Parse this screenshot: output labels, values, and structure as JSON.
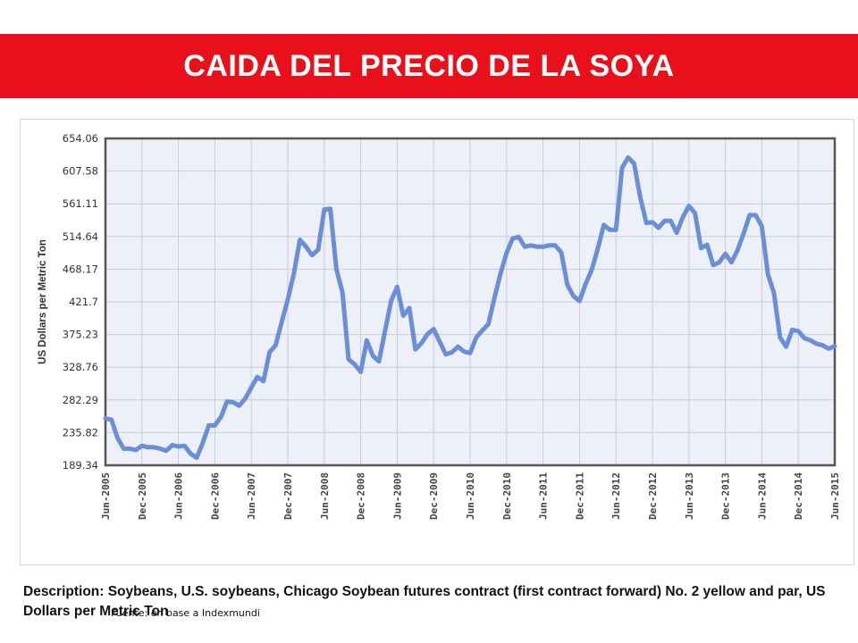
{
  "header": {
    "title": "CAIDA DEL PRECIO DE LA SOYA",
    "background_color": "#e8101a",
    "text_color": "#ffffff"
  },
  "chart_data": {
    "type": "line",
    "title": "",
    "xlabel": "",
    "ylabel": "US Dollars per Metric Ton",
    "ylim": [
      189.34,
      654.06
    ],
    "y_ticks": [
      "654.06",
      "607.58",
      "561.11",
      "514.64",
      "468.17",
      "421.7",
      "375.23",
      "328.76",
      "282.29",
      "235.82",
      "189.34"
    ],
    "x_ticks": [
      "Jun-2005",
      "Dec-2005",
      "Jun-2006",
      "Dec-2006",
      "Jun-2007",
      "Dec-2007",
      "Jun-2008",
      "Dec-2008",
      "Jun-2009",
      "Dec-2009",
      "Jun-2010",
      "Dec-2010",
      "Jun-2011",
      "Dec-2011",
      "Jun-2012",
      "Dec-2012",
      "Jun-2013",
      "Dec-2013",
      "Jun-2014",
      "Dec-2014",
      "Jun-2015"
    ],
    "grid": true,
    "line_color": "#6b8fd6",
    "plot_background": "#eef0f8",
    "series": [
      {
        "values": [
          [
            0,
            256
          ],
          [
            1,
            254
          ],
          [
            2,
            228
          ],
          [
            3,
            213
          ],
          [
            4,
            213
          ],
          [
            5,
            211
          ],
          [
            6,
            217
          ],
          [
            7,
            215
          ],
          [
            8,
            215
          ],
          [
            9,
            213
          ],
          [
            10,
            210
          ],
          [
            11,
            218
          ],
          [
            12,
            216
          ],
          [
            13,
            217
          ],
          [
            14,
            206
          ],
          [
            15,
            200
          ],
          [
            16,
            221
          ],
          [
            17,
            246
          ],
          [
            18,
            246
          ],
          [
            19,
            258
          ],
          [
            20,
            280
          ],
          [
            21,
            279
          ],
          [
            22,
            274
          ],
          [
            23,
            284
          ],
          [
            24,
            300
          ],
          [
            25,
            315
          ],
          [
            26,
            309
          ],
          [
            27,
            350
          ],
          [
            28,
            360
          ],
          [
            29,
            393
          ],
          [
            30,
            425
          ],
          [
            31,
            462
          ],
          [
            32,
            510
          ],
          [
            33,
            500
          ],
          [
            34,
            488
          ],
          [
            35,
            496
          ],
          [
            36,
            553
          ],
          [
            37,
            554
          ],
          [
            38,
            468
          ],
          [
            39,
            435
          ],
          [
            40,
            340
          ],
          [
            41,
            333
          ],
          [
            42,
            322
          ],
          [
            43,
            367
          ],
          [
            44,
            345
          ],
          [
            45,
            337
          ],
          [
            46,
            380
          ],
          [
            47,
            423
          ],
          [
            48,
            443
          ],
          [
            49,
            402
          ],
          [
            50,
            413
          ],
          [
            51,
            354
          ],
          [
            52,
            363
          ],
          [
            53,
            376
          ],
          [
            54,
            383
          ],
          [
            55,
            365
          ],
          [
            56,
            347
          ],
          [
            57,
            350
          ],
          [
            58,
            358
          ],
          [
            59,
            351
          ],
          [
            60,
            349
          ],
          [
            61,
            371
          ],
          [
            62,
            381
          ],
          [
            63,
            390
          ],
          [
            64,
            427
          ],
          [
            65,
            462
          ],
          [
            66,
            491
          ],
          [
            67,
            512
          ],
          [
            68,
            514
          ],
          [
            69,
            500
          ],
          [
            70,
            502
          ],
          [
            71,
            500
          ],
          [
            72,
            500
          ],
          [
            73,
            502
          ],
          [
            74,
            502
          ],
          [
            75,
            492
          ],
          [
            76,
            446
          ],
          [
            77,
            430
          ],
          [
            78,
            423
          ],
          [
            79,
            447
          ],
          [
            80,
            467
          ],
          [
            81,
            497
          ],
          [
            82,
            531
          ],
          [
            83,
            524
          ],
          [
            84,
            524
          ],
          [
            85,
            612
          ],
          [
            86,
            627
          ],
          [
            87,
            618
          ],
          [
            88,
            570
          ],
          [
            89,
            534
          ],
          [
            90,
            535
          ],
          [
            91,
            527
          ],
          [
            92,
            537
          ],
          [
            93,
            537
          ],
          [
            94,
            520
          ],
          [
            95,
            542
          ],
          [
            96,
            558
          ],
          [
            97,
            548
          ],
          [
            98,
            498
          ],
          [
            99,
            503
          ],
          [
            100,
            474
          ],
          [
            101,
            478
          ],
          [
            102,
            490
          ],
          [
            103,
            478
          ],
          [
            104,
            495
          ],
          [
            105,
            519
          ],
          [
            106,
            545
          ],
          [
            107,
            545
          ],
          [
            108,
            529
          ],
          [
            109,
            461
          ],
          [
            110,
            434
          ],
          [
            111,
            371
          ],
          [
            112,
            358
          ],
          [
            113,
            382
          ],
          [
            114,
            380
          ],
          [
            115,
            370
          ],
          [
            116,
            367
          ],
          [
            117,
            362
          ],
          [
            118,
            360
          ],
          [
            119,
            355
          ],
          [
            120,
            359
          ]
        ]
      }
    ]
  },
  "description": {
    "label": "Description:",
    "text": "Soybeans, U.S. soybeans, Chicago Soybean futures contract (first contract forward) No. 2 yellow and par, US Dollars per Metric Ton"
  },
  "source": "Fuente: en base a Indexmundi"
}
